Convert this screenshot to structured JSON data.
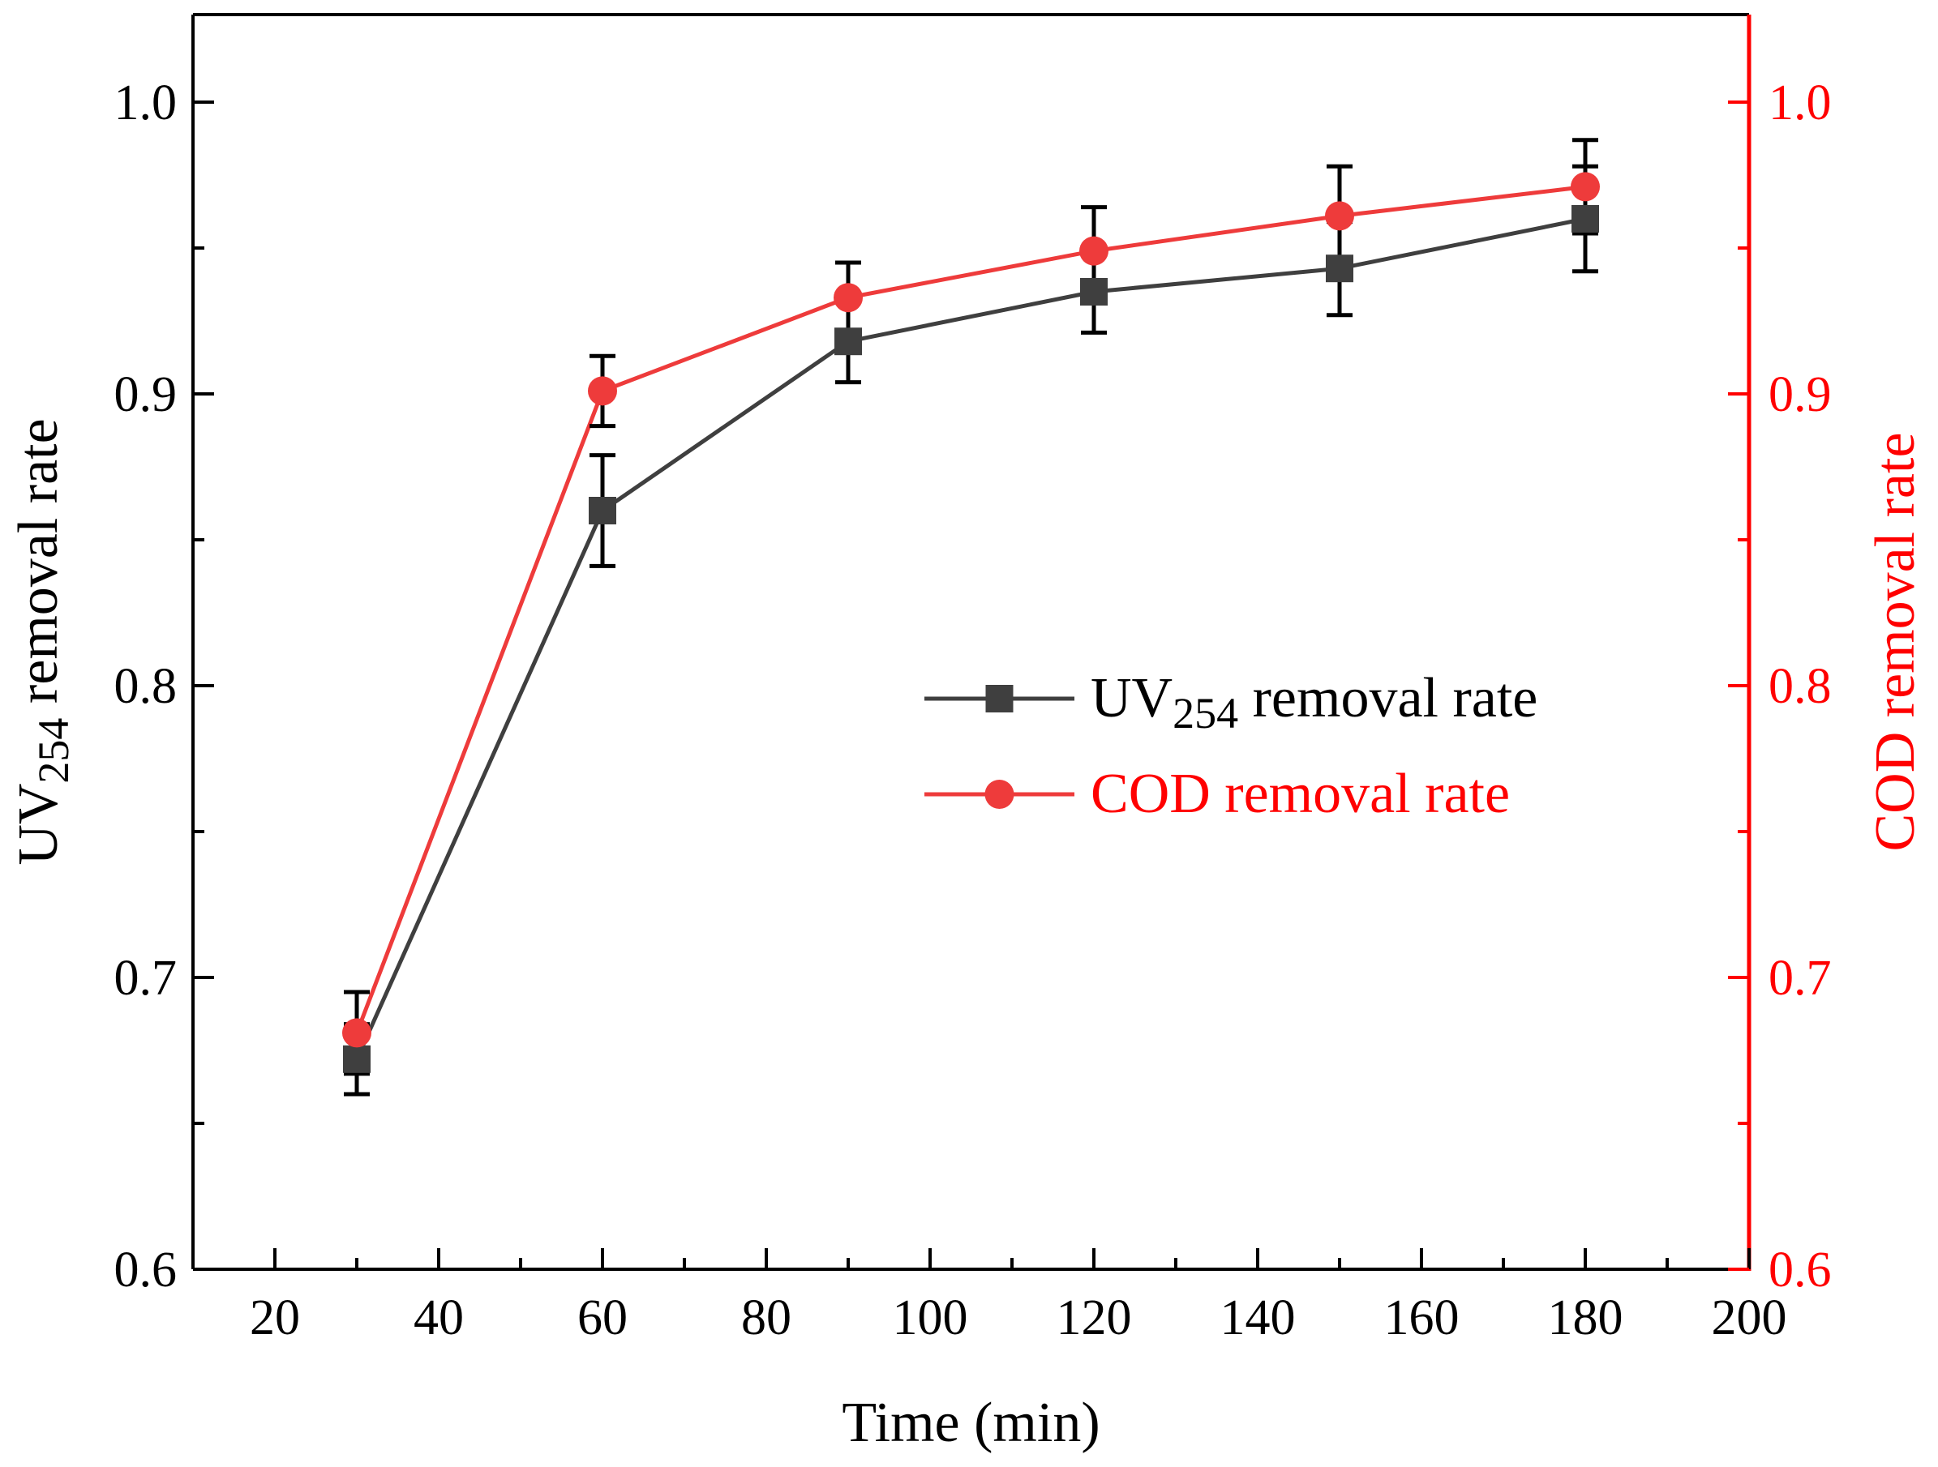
{
  "chart_data": {
    "type": "line",
    "xlabel": "Time (min)",
    "ylabel_left": {
      "main": "UV",
      "sub": "254",
      "rest": " removal rate"
    },
    "ylabel_right": "COD removal rate",
    "xlim": [
      10,
      200
    ],
    "xticks": [
      20,
      40,
      60,
      80,
      100,
      120,
      140,
      160,
      180,
      200
    ],
    "ylim_left": [
      0.6,
      1.03
    ],
    "ylim_right": [
      0.6,
      1.03
    ],
    "yticks_left": [
      0.6,
      0.7,
      0.8,
      0.9,
      1.0
    ],
    "yticks_right": [
      0.6,
      0.7,
      0.8,
      0.9,
      1.0
    ],
    "ytick_labels": [
      "0.6",
      "0.7",
      "0.8",
      "0.9",
      "1.0"
    ],
    "grid": false,
    "legend_position": "center-right",
    "series": [
      {
        "name": {
          "main": "UV",
          "sub": "254",
          "rest": " removal rate"
        },
        "axis": "left",
        "color": "#3f3f3f",
        "marker": "square",
        "x": [
          30,
          60,
          90,
          120,
          150,
          180
        ],
        "y": [
          0.672,
          0.86,
          0.918,
          0.935,
          0.943,
          0.96
        ],
        "error": [
          0.012,
          0.019,
          0.014,
          0.014,
          0.016,
          0.018
        ]
      },
      {
        "name": "COD removal rate",
        "axis": "right",
        "color": "#ee3b3b",
        "marker": "circle",
        "x": [
          30,
          60,
          90,
          120,
          150,
          180
        ],
        "y": [
          0.681,
          0.901,
          0.933,
          0.949,
          0.961,
          0.971
        ],
        "error": [
          0.014,
          0.012,
          0.012,
          0.015,
          0.017,
          0.016
        ]
      }
    ],
    "colors": {
      "left_axis": "#000000",
      "right_axis": "#ff0000",
      "error_bar": "#000000"
    }
  }
}
